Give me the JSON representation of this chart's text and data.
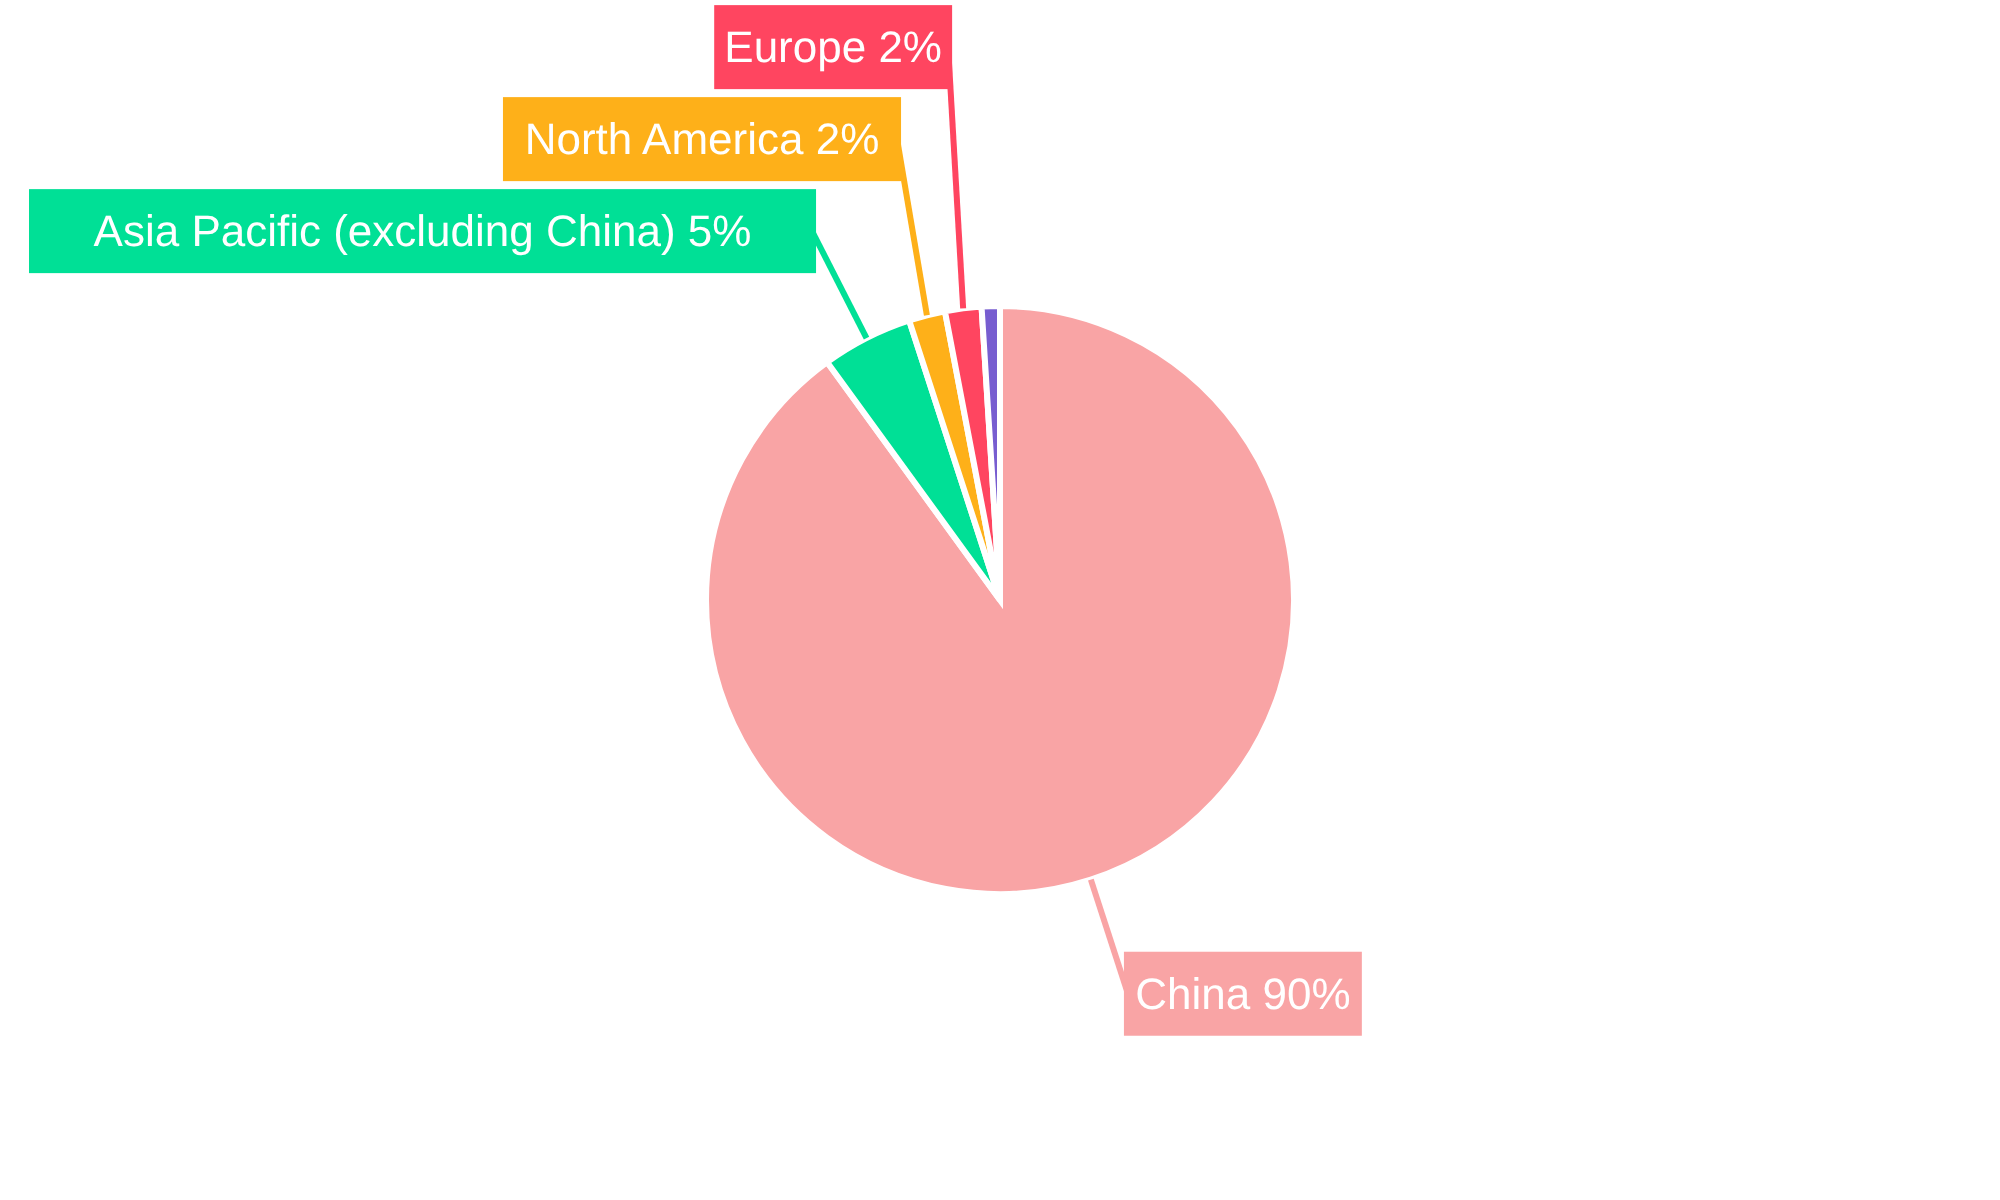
{
  "chart_data": {
    "type": "pie",
    "categories": [
      "China",
      "Asia Pacific (excluding China)",
      "North America",
      "Europe",
      null
    ],
    "values": [
      90,
      5,
      2,
      2,
      1
    ],
    "colors": [
      "#f9a4a5",
      "#00e096",
      "#feb019",
      "#ff4560",
      "#775dd0"
    ],
    "value_labels": [
      "90%",
      "5%",
      "2%",
      "2%",
      null
    ]
  }
}
